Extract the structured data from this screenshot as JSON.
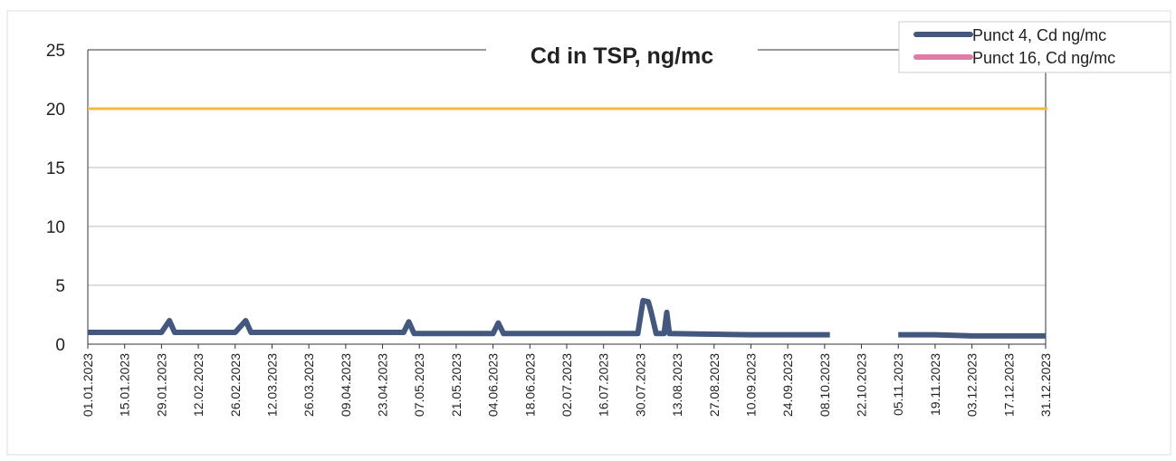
{
  "chart_data": {
    "type": "line",
    "title": "Cd in TSP, ng/mc",
    "ylim": [
      0,
      25
    ],
    "yticks": [
      0,
      5,
      10,
      15,
      20,
      25
    ],
    "grid": true,
    "xlim": [
      "01.01.2023",
      "31.12.2023"
    ],
    "xticks": [
      "01.01.2023",
      "15.01.2023",
      "29.01.2023",
      "12.02.2023",
      "26.02.2023",
      "12.03.2023",
      "26.03.2023",
      "09.04.2023",
      "23.04.2023",
      "07.05.2023",
      "21.05.2023",
      "04.06.2023",
      "18.06.2023",
      "02.07.2023",
      "16.07.2023",
      "30.07.2023",
      "13.08.2023",
      "27.08.2023",
      "10.09.2023",
      "24.09.2023",
      "08.10.2023",
      "22.10.2023",
      "05.11.2023",
      "19.11.2023",
      "03.12.2023",
      "17.12.2023",
      "31.12.2023"
    ],
    "reference_line": {
      "value": 20,
      "color": "#f5b942"
    },
    "legend": "top-right",
    "series": [
      {
        "name": "Punct 4, Cd  ng/mc",
        "color": "#44577f",
        "x": [
          "01.01.2023",
          "15.01.2023",
          "29.01.2023",
          "01.02.2023",
          "03.02.2023",
          "12.02.2023",
          "26.02.2023",
          "02.03.2023",
          "04.03.2023",
          "12.03.2023",
          "26.03.2023",
          "09.04.2023",
          "23.04.2023",
          "01.05.2023",
          "03.05.2023",
          "05.05.2023",
          "21.05.2023",
          "04.06.2023",
          "06.06.2023",
          "08.06.2023",
          "02.07.2023",
          "29.07.2023",
          "31.07.2023",
          "02.08.2023",
          "03.08.2023",
          "05.08.2023",
          "08.08.2023",
          "09.08.2023",
          "10.08.2023",
          "10.09.2023",
          "10.10.2023",
          "20.10.2023",
          "05.11.2023",
          "19.11.2023",
          "03.12.2023",
          "31.12.2023"
        ],
        "values": [
          1.0,
          1.0,
          1.0,
          2.0,
          1.0,
          1.0,
          1.0,
          2.0,
          1.0,
          1.0,
          1.0,
          1.0,
          1.0,
          1.0,
          1.9,
          0.9,
          0.9,
          0.9,
          1.8,
          0.9,
          0.9,
          0.9,
          3.7,
          3.6,
          2.8,
          0.9,
          0.9,
          2.7,
          0.9,
          0.8,
          0.8,
          null,
          0.8,
          0.8,
          0.7,
          0.7
        ]
      },
      {
        "name": "Punct 16, Cd  ng/mc",
        "color": "#e07aa8",
        "x": [],
        "values": []
      }
    ]
  }
}
